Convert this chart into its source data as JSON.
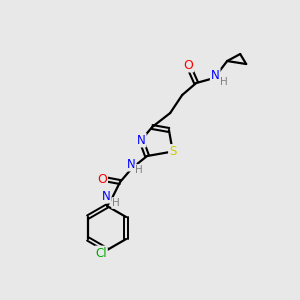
{
  "bg_color": "#e8e8e8",
  "bond_color": "#000000",
  "atom_colors": {
    "N": "#0000ff",
    "O": "#ff0000",
    "S": "#cccc00",
    "Cl": "#00aa00",
    "H": "#808080",
    "C": "#000000"
  },
  "figsize": [
    3.0,
    3.0
  ],
  "dpi": 100
}
